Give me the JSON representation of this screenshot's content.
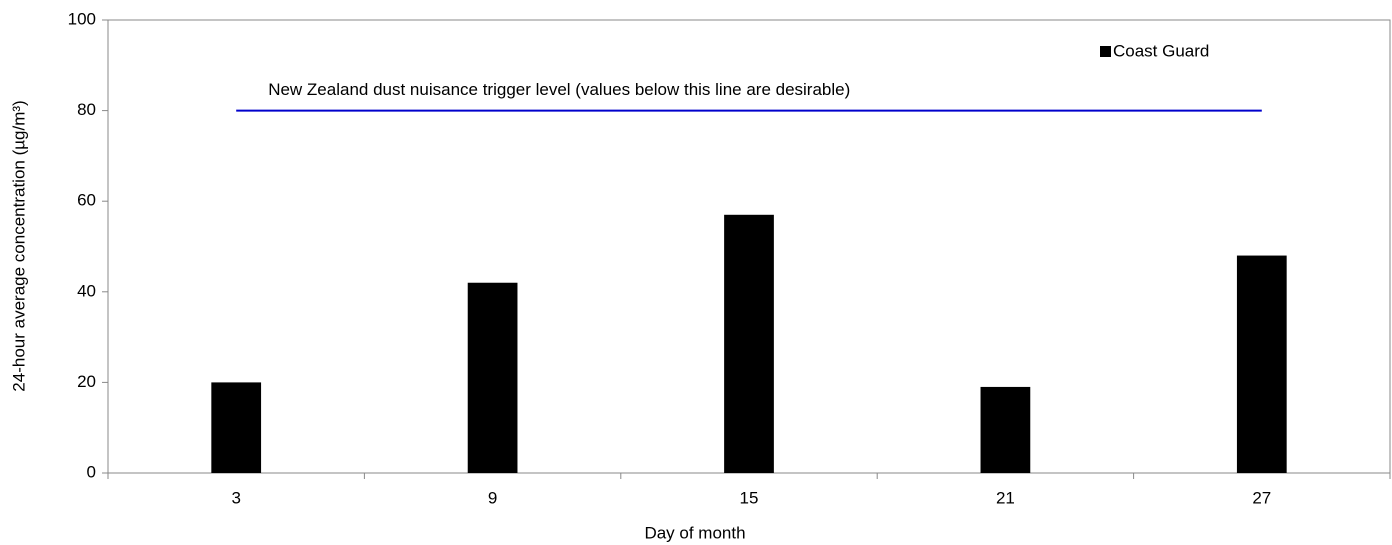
{
  "chart_data": {
    "type": "bar",
    "x_label": "Day of month",
    "y_label": "24-hour average concentration (µg/m³)",
    "categories": [
      "3",
      "9",
      "15",
      "21",
      "27"
    ],
    "series": [
      {
        "name": "Coast Guard",
        "color": "#000000",
        "values": [
          20,
          42,
          57,
          19,
          48
        ]
      }
    ],
    "ylim": [
      0,
      100
    ],
    "yticks": [
      0,
      20,
      40,
      60,
      80,
      100
    ],
    "reference_line": {
      "value": 80,
      "label": "New Zealand dust nuisance trigger level (values below this line are desirable)",
      "color": "#0000cc"
    },
    "legend": "top-right",
    "grid": false
  }
}
